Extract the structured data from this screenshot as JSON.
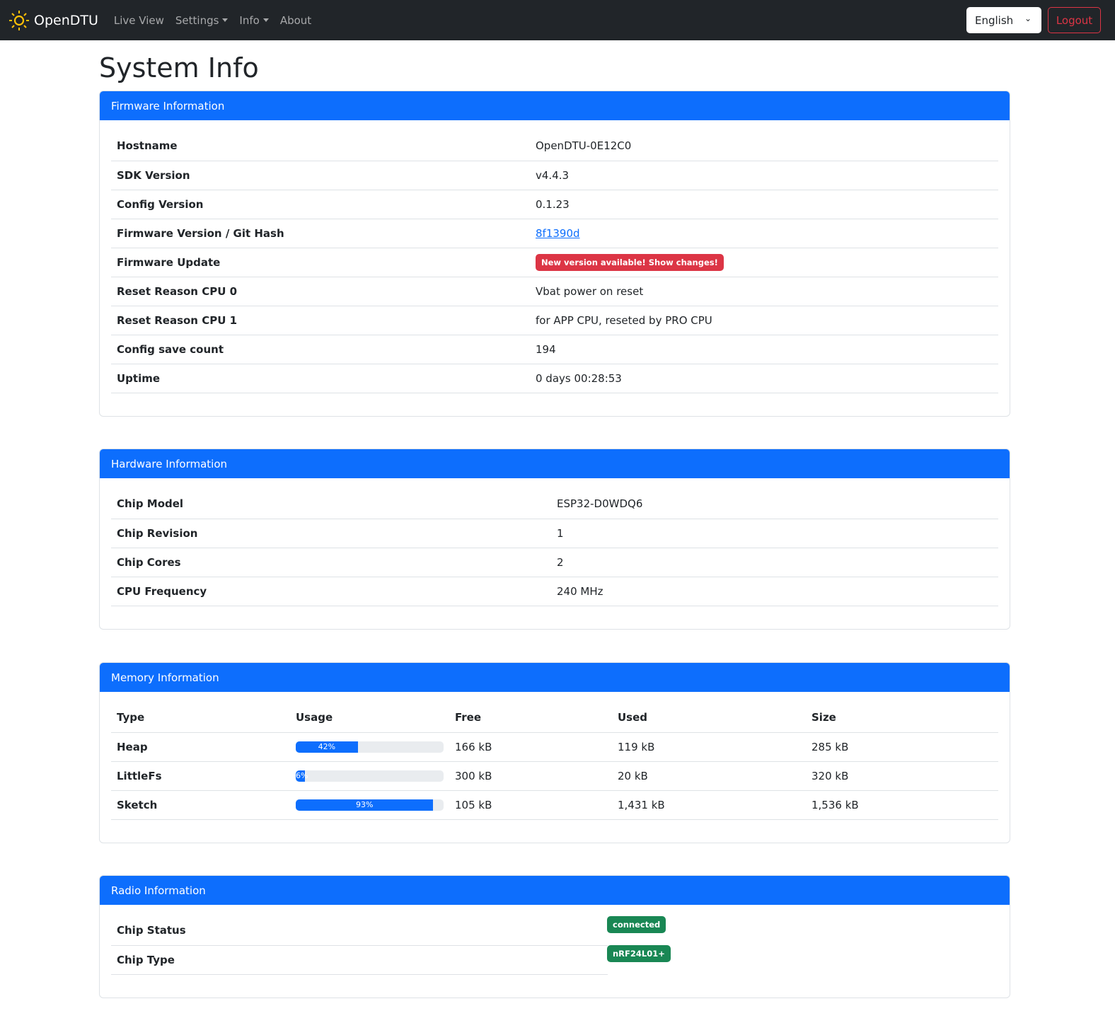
{
  "nav": {
    "brand": "OpenDTU",
    "links": [
      "Live View",
      "Settings",
      "Info",
      "About"
    ],
    "language": "English",
    "logout": "Logout"
  },
  "page_title": "System Info",
  "firmware": {
    "title": "Firmware Information",
    "rows": [
      {
        "label": "Hostname",
        "value": "OpenDTU-0E12C0"
      },
      {
        "label": "SDK Version",
        "value": "v4.4.3"
      },
      {
        "label": "Config Version",
        "value": "0.1.23"
      },
      {
        "label": "Firmware Version / Git Hash",
        "value": "8f1390d"
      },
      {
        "label": "Firmware Update",
        "value": "New version available! Show changes!"
      },
      {
        "label": "Reset Reason CPU 0",
        "value": "Vbat power on reset"
      },
      {
        "label": "Reset Reason CPU 1",
        "value": "for APP CPU, reseted by PRO CPU"
      },
      {
        "label": "Config save count",
        "value": "194"
      },
      {
        "label": "Uptime",
        "value": "0 days 00:28:53"
      }
    ]
  },
  "hardware": {
    "title": "Hardware Information",
    "rows": [
      {
        "label": "Chip Model",
        "value": "ESP32-D0WDQ6"
      },
      {
        "label": "Chip Revision",
        "value": "1"
      },
      {
        "label": "Chip Cores",
        "value": "2"
      },
      {
        "label": "CPU Frequency",
        "value": "240 MHz"
      }
    ]
  },
  "memory": {
    "title": "Memory Information",
    "headers": [
      "Type",
      "Usage",
      "Free",
      "Used",
      "Size"
    ],
    "rows": [
      {
        "type": "Heap",
        "usage": 42,
        "usage_label": "42%",
        "free": "166 kB",
        "used": "119 kB",
        "size": "285 kB"
      },
      {
        "type": "LittleFs",
        "usage": 6,
        "usage_label": "6%",
        "free": "300 kB",
        "used": "20 kB",
        "size": "320 kB"
      },
      {
        "type": "Sketch",
        "usage": 93,
        "usage_label": "93%",
        "free": "105 kB",
        "used": "1,431 kB",
        "size": "1,536 kB"
      }
    ]
  },
  "radio": {
    "title": "Radio Information",
    "rows": [
      {
        "label": "Chip Status",
        "value": "connected"
      },
      {
        "label": "Chip Type",
        "value": "nRF24L01+"
      }
    ]
  }
}
